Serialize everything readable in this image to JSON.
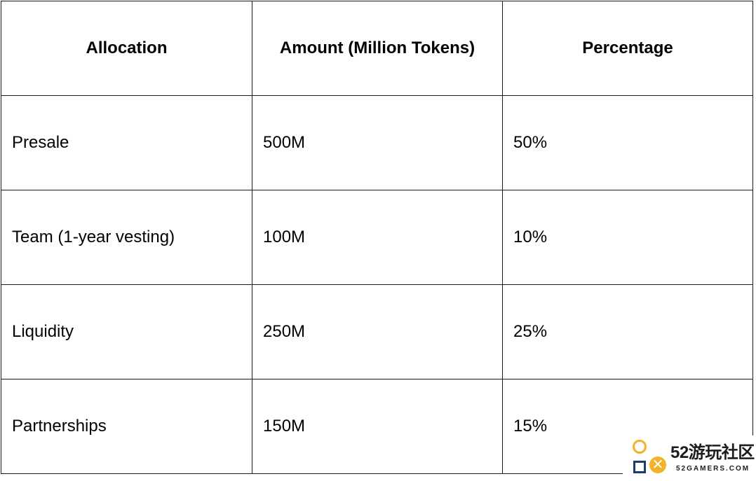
{
  "table": {
    "headers": [
      "Allocation",
      "Amount (Million Tokens)",
      "Percentage"
    ],
    "rows": [
      [
        "Presale",
        "500M",
        "50%"
      ],
      [
        "Team (1-year vesting)",
        "100M",
        "10%"
      ],
      [
        "Liquidity",
        "250M",
        "25%"
      ],
      [
        "Partnerships",
        "150M",
        "15%"
      ]
    ]
  },
  "watermark": {
    "title": "52游玩社区",
    "site": "52GAMERS.COM",
    "icons": [
      "circle-icon",
      "triangle-icon",
      "square-icon",
      "x-icon"
    ],
    "colors": {
      "yellow": "#f2b32b",
      "navy": "#1c3d6b"
    }
  }
}
